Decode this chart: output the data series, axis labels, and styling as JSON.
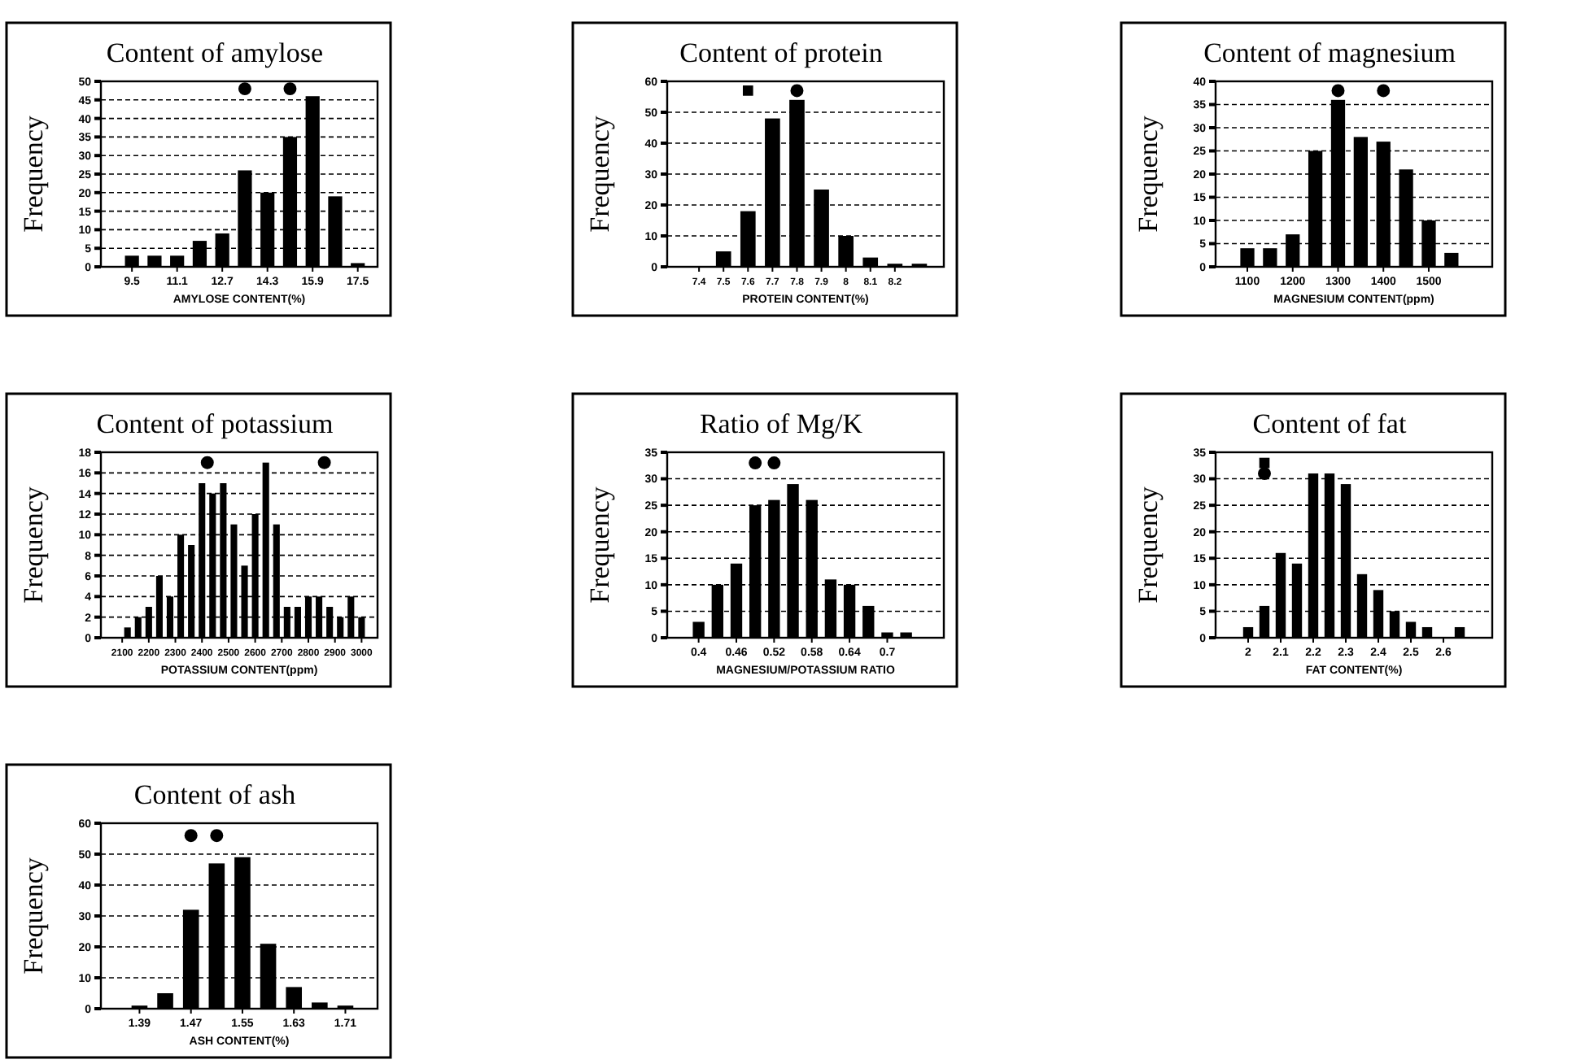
{
  "chart_data": [
    {
      "type": "histogram",
      "title": "Content of amylose",
      "xlabel": "AMYLOSE CONTENT(%)",
      "ylabel": "Frequency",
      "color": "#000000",
      "grid": "y",
      "bins": [
        9.1,
        9.9,
        10.7,
        11.5,
        12.3,
        13.1,
        13.9,
        14.7,
        15.5,
        16.3,
        17.1,
        17.9
      ],
      "values": [
        3,
        3,
        3,
        7,
        9,
        26,
        20,
        35,
        46,
        19,
        1
      ],
      "xlim": [
        8.4,
        18.2
      ],
      "xticks": [
        9.5,
        11.1,
        12.7,
        14.3,
        15.9,
        17.5
      ],
      "ylim": [
        0,
        50
      ],
      "yticks": [
        0,
        5,
        10,
        15,
        20,
        25,
        30,
        35,
        40,
        45,
        50
      ],
      "series": [
        {
          "type": "scatter",
          "marker": "circle",
          "color": "#000000",
          "x": [
            13.5,
            15.1
          ],
          "values": [
            48,
            48
          ]
        }
      ]
    },
    {
      "type": "histogram",
      "title": "Content of protein",
      "xlabel": "PROTEIN CONTENT(%)",
      "ylabel": "Frequency",
      "color": "#000000",
      "grid": "y",
      "bins": [
        7.35,
        7.45,
        7.55,
        7.65,
        7.75,
        7.85,
        7.95,
        8.05,
        8.15,
        8.25,
        8.35
      ],
      "values": [
        0,
        5,
        18,
        48,
        54,
        25,
        10,
        3,
        1,
        1
      ],
      "xlim": [
        7.27,
        8.4
      ],
      "xticks": [
        7.4,
        7.5,
        7.6,
        7.7,
        7.8,
        7.9,
        8,
        8.1,
        8.2
      ],
      "ylim": [
        0,
        60
      ],
      "yticks": [
        0,
        10,
        20,
        30,
        40,
        50,
        60
      ],
      "series": [
        {
          "type": "scatter",
          "marker": "square",
          "color": "#000000",
          "x": [
            7.6
          ],
          "values": [
            57
          ]
        },
        {
          "type": "scatter",
          "marker": "circle",
          "color": "#000000",
          "x": [
            7.8
          ],
          "values": [
            57
          ]
        }
      ]
    },
    {
      "type": "histogram",
      "title": "Content of magnesium",
      "xlabel": "MAGNESIUM CONTENT(ppm)",
      "ylabel": "Frequency",
      "color": "#000000",
      "grid": "y",
      "bins": [
        1075,
        1125,
        1175,
        1225,
        1275,
        1325,
        1375,
        1425,
        1475,
        1525,
        1575
      ],
      "values": [
        4,
        4,
        7,
        25,
        36,
        28,
        27,
        21,
        10,
        3
      ],
      "xlim": [
        1030,
        1640
      ],
      "xticks": [
        1100,
        1200,
        1300,
        1400,
        1500
      ],
      "ylim": [
        0,
        40
      ],
      "yticks": [
        0,
        5,
        10,
        15,
        20,
        25,
        30,
        35,
        40
      ],
      "series": [
        {
          "type": "scatter",
          "marker": "circle",
          "color": "#000000",
          "x": [
            1300,
            1400
          ],
          "values": [
            38,
            38
          ]
        }
      ]
    },
    {
      "type": "histogram",
      "title": "Content of potassium",
      "xlabel": "POTASSIUM CONTENT(ppm)",
      "ylabel": "Frequency",
      "color": "#000000",
      "grid": "y",
      "bins": [
        2100,
        2140,
        2180,
        2220,
        2260,
        2300,
        2340,
        2380,
        2420,
        2460,
        2500,
        2540,
        2580,
        2620,
        2660,
        2700,
        2740,
        2780,
        2820,
        2860,
        2900,
        2940,
        2980,
        3020
      ],
      "values": [
        1,
        2,
        3,
        6,
        4,
        10,
        9,
        15,
        14,
        15,
        11,
        7,
        12,
        17,
        11,
        3,
        3,
        4,
        4,
        3,
        2,
        4,
        2
      ],
      "xlim": [
        2020,
        3060
      ],
      "xticks": [
        2100,
        2200,
        2300,
        2400,
        2500,
        2600,
        2700,
        2800,
        2900,
        3000
      ],
      "ylim": [
        0,
        18
      ],
      "yticks": [
        0,
        2,
        4,
        6,
        8,
        10,
        12,
        14,
        16,
        18
      ],
      "series": [
        {
          "type": "scatter",
          "marker": "circle",
          "color": "#000000",
          "x": [
            2420,
            2860
          ],
          "values": [
            17,
            17
          ]
        }
      ]
    },
    {
      "type": "histogram",
      "title": "Ratio of Mg/K",
      "xlabel": "MAGNESIUM/POTASSIUM RATIO",
      "ylabel": "Frequency",
      "color": "#000000",
      "grid": "y",
      "bins": [
        0.385,
        0.415,
        0.445,
        0.475,
        0.505,
        0.535,
        0.565,
        0.595,
        0.625,
        0.655,
        0.685,
        0.715,
        0.745
      ],
      "values": [
        3,
        10,
        14,
        25,
        26,
        29,
        26,
        11,
        10,
        6,
        1,
        1
      ],
      "xlim": [
        0.35,
        0.79
      ],
      "xticks": [
        0.4,
        0.46,
        0.52,
        0.58,
        0.64,
        0.7
      ],
      "ylim": [
        0,
        35
      ],
      "yticks": [
        0,
        5,
        10,
        15,
        20,
        25,
        30,
        35
      ],
      "series": [
        {
          "type": "scatter",
          "marker": "circle",
          "color": "#000000",
          "x": [
            0.49,
            0.52
          ],
          "values": [
            33,
            33
          ]
        }
      ]
    },
    {
      "type": "histogram",
      "title": "Content of fat",
      "xlabel": "FAT CONTENT(%)",
      "ylabel": "Frequency",
      "color": "#000000",
      "grid": "y",
      "bins": [
        1.975,
        2.025,
        2.075,
        2.125,
        2.175,
        2.225,
        2.275,
        2.325,
        2.375,
        2.425,
        2.475,
        2.525,
        2.575,
        2.625,
        2.675
      ],
      "values": [
        2,
        6,
        16,
        14,
        31,
        31,
        29,
        12,
        9,
        5,
        3,
        2,
        0,
        2
      ],
      "xlim": [
        1.9,
        2.75
      ],
      "xticks": [
        2,
        2.1,
        2.2,
        2.3,
        2.4,
        2.5,
        2.6
      ],
      "ylim": [
        0,
        35
      ],
      "yticks": [
        0,
        5,
        10,
        15,
        20,
        25,
        30,
        35
      ],
      "series": [
        {
          "type": "scatter",
          "marker": "square",
          "color": "#000000",
          "x": [
            2.05
          ],
          "values": [
            33
          ]
        },
        {
          "type": "scatter",
          "marker": "circle",
          "color": "#000000",
          "x": [
            2.05
          ],
          "values": [
            31
          ]
        }
      ]
    },
    {
      "type": "histogram",
      "title": "Content of ash",
      "xlabel": "ASH CONTENT(%)",
      "ylabel": "Frequency",
      "color": "#000000",
      "grid": "y",
      "bins": [
        1.37,
        1.41,
        1.45,
        1.49,
        1.53,
        1.57,
        1.61,
        1.65,
        1.69,
        1.73
      ],
      "values": [
        1,
        5,
        32,
        47,
        49,
        21,
        7,
        2,
        1
      ],
      "xlim": [
        1.33,
        1.76
      ],
      "xticks": [
        1.39,
        1.47,
        1.55,
        1.63,
        1.71
      ],
      "ylim": [
        0,
        60
      ],
      "yticks": [
        0,
        10,
        20,
        30,
        40,
        50,
        60
      ],
      "series": [
        {
          "type": "scatter",
          "marker": "circle",
          "color": "#000000",
          "x": [
            1.47,
            1.51
          ],
          "values": [
            56,
            56
          ]
        }
      ]
    }
  ]
}
